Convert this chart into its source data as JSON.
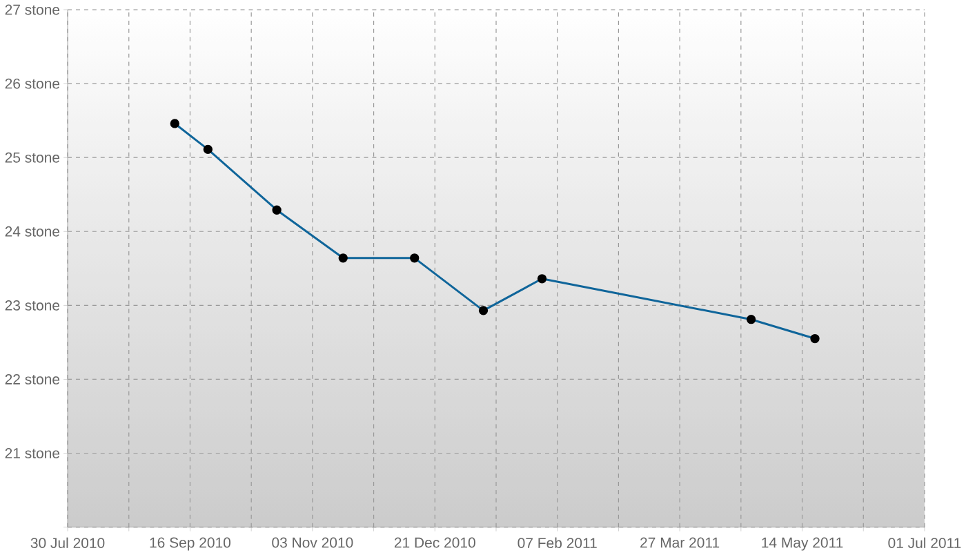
{
  "chart_data": {
    "type": "line",
    "x": [
      "2010-09-10",
      "2010-09-23",
      "2010-10-20",
      "2010-11-15",
      "2010-12-13",
      "2011-01-09",
      "2011-02-01",
      "2011-04-24",
      "2011-05-19"
    ],
    "series": [
      {
        "color": "#0f659a",
        "values": [
          25.46,
          25.11,
          24.29,
          23.64,
          23.64,
          22.93,
          23.36,
          22.81,
          22.55
        ]
      }
    ],
    "xlim": [
      "2010-07-30",
      "2011-07-01"
    ],
    "xticks": [
      {
        "value": "2010-07-30",
        "label": "30 Jul 2010"
      },
      {
        "value": "2010-08-23",
        "label": null
      },
      {
        "value": "2010-09-16",
        "label": "16 Sep 2010"
      },
      {
        "value": "2010-10-10",
        "label": null
      },
      {
        "value": "2010-11-03",
        "label": "03 Nov 2010"
      },
      {
        "value": "2010-11-27",
        "label": null
      },
      {
        "value": "2010-12-21",
        "label": "21 Dec 2010"
      },
      {
        "value": "2011-01-14",
        "label": null
      },
      {
        "value": "2011-02-07",
        "label": "07 Feb 2011"
      },
      {
        "value": "2011-03-03",
        "label": null
      },
      {
        "value": "2011-03-27",
        "label": "27 Mar 2011"
      },
      {
        "value": "2011-04-20",
        "label": null
      },
      {
        "value": "2011-05-14",
        "label": "14 May 2011"
      },
      {
        "value": "2011-06-07",
        "label": null
      },
      {
        "value": "2011-07-01",
        "label": "01 Jul 2011"
      }
    ],
    "ylim": [
      20,
      27
    ],
    "yticks": [
      {
        "value": 20,
        "label": null
      },
      {
        "value": 21,
        "label": "21 stone"
      },
      {
        "value": 22,
        "label": "22 stone"
      },
      {
        "value": 23,
        "label": "23 stone"
      },
      {
        "value": 24,
        "label": "24 stone"
      },
      {
        "value": 25,
        "label": "25 stone"
      },
      {
        "value": 26,
        "label": "26 stone"
      },
      {
        "value": 27,
        "label": "27 stone"
      }
    ],
    "grid": true,
    "marker": "circle"
  }
}
